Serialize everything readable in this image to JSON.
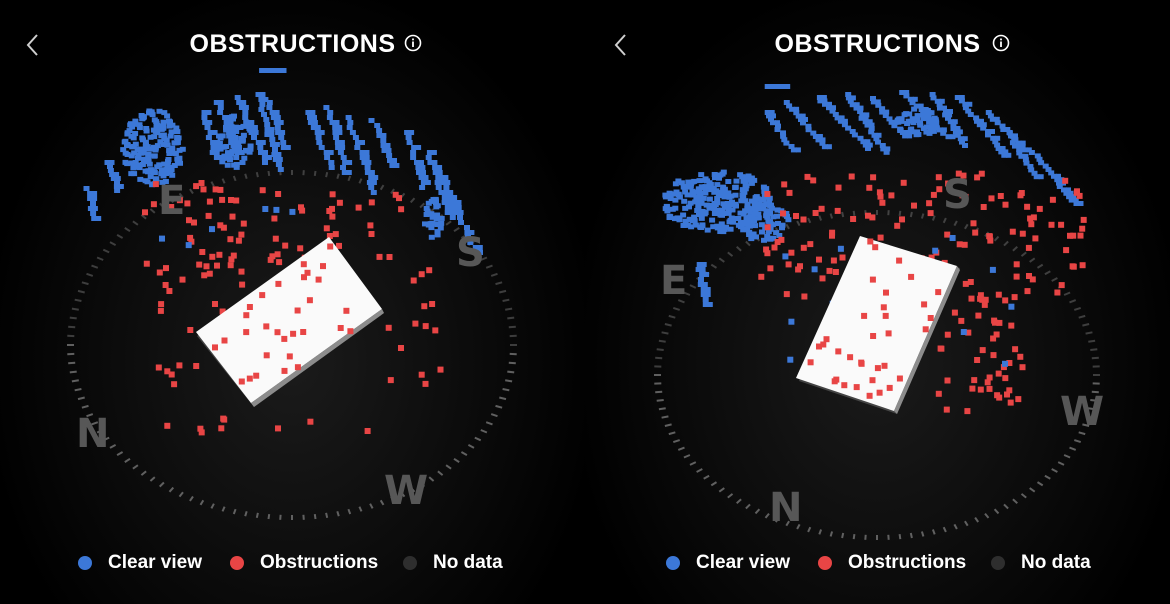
{
  "panels": [
    {
      "header": {
        "title": "OBSTRUCTIONS",
        "back_icon": "chevron-left-icon",
        "info_icon": "info-circle-icon"
      },
      "compass": {
        "n": "N",
        "e": "E",
        "s": "S",
        "w": "W"
      },
      "legend": [
        {
          "label": "Clear view",
          "color": "#3c78d8"
        },
        {
          "label": "Obstructions",
          "color": "#e84545"
        },
        {
          "label": "No data",
          "color": "#2e2e2e"
        }
      ]
    },
    {
      "header": {
        "title": "OBSTRUCTIONS",
        "back_icon": "chevron-left-icon",
        "info_icon": "info-circle-icon"
      },
      "compass": {
        "n": "N",
        "e": "E",
        "s": "S",
        "w": "W"
      },
      "legend": [
        {
          "label": "Clear view",
          "color": "#3c78d8"
        },
        {
          "label": "Obstructions",
          "color": "#e84545"
        },
        {
          "label": "No data",
          "color": "#2e2e2e"
        }
      ]
    }
  ],
  "colors": {
    "background": "#000000",
    "clear_view": "#3c78d8",
    "obstruction": "#e84545",
    "no_data": "#2e2e2e",
    "dish": "#ffffff",
    "compass_letter": "#575757",
    "tick": "#6a6a6a"
  }
}
